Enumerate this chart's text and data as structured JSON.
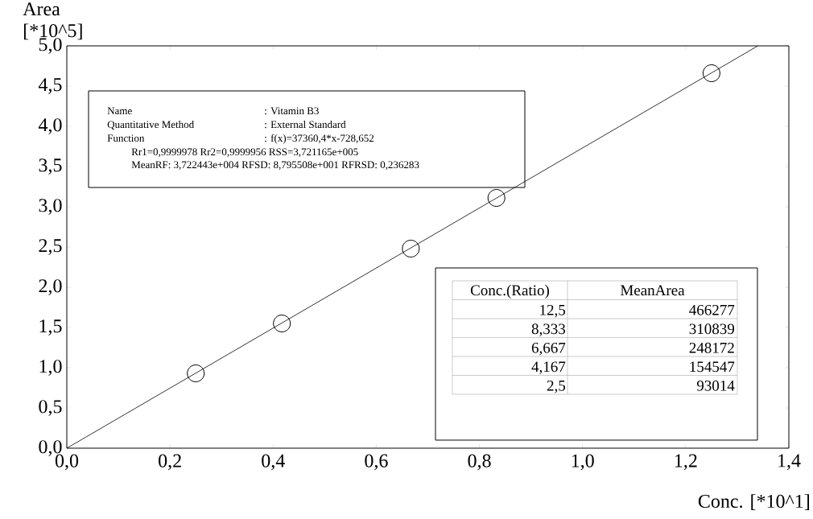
{
  "chart_data": {
    "type": "scatter",
    "xlabel": "Conc. [*10^1]",
    "ylabel": "Area [*10^5]",
    "xlim": [
      0,
      1.4
    ],
    "ylim": [
      0,
      5.0
    ],
    "xticks": [
      {
        "value": 0,
        "label": "0,0"
      },
      {
        "value": 0.2,
        "label": "0,2"
      },
      {
        "value": 0.4,
        "label": "0,4"
      },
      {
        "value": 0.6,
        "label": "0,6"
      },
      {
        "value": 0.8,
        "label": "0,8"
      },
      {
        "value": 1.0,
        "label": "1,0"
      },
      {
        "value": 1.2,
        "label": "1,2"
      },
      {
        "value": 1.4,
        "label": "1,4"
      }
    ],
    "yticks": [
      {
        "value": 0,
        "label": "0,0"
      },
      {
        "value": 0.5,
        "label": "0,5"
      },
      {
        "value": 1.0,
        "label": "1,0"
      },
      {
        "value": 1.5,
        "label": "1,5"
      },
      {
        "value": 2.0,
        "label": "2,0"
      },
      {
        "value": 2.5,
        "label": "2,5"
      },
      {
        "value": 3.0,
        "label": "3,0"
      },
      {
        "value": 3.5,
        "label": "3,5"
      },
      {
        "value": 4.0,
        "label": "4,0"
      },
      {
        "value": 4.5,
        "label": "4,5"
      },
      {
        "value": 5.0,
        "label": "5,0"
      }
    ],
    "grid": false,
    "series": [
      {
        "color": "#000000",
        "marker": "circle",
        "x": [
          1.25,
          0.833,
          0.667,
          0.417,
          0.25
        ],
        "values": [
          4.66,
          3.11,
          2.48,
          1.55,
          0.93
        ]
      },
      {
        "type": "line",
        "color": "#000000",
        "marker": "none",
        "line_style": "solid",
        "x": [
          0,
          1.34
        ],
        "values": [
          0,
          5.0
        ]
      }
    ],
    "annotations": [
      "Name",
      ": Vitamin B3",
      "Quantitative Method",
      ": External Standard",
      "Function",
      ": f(x)=37360,4*x-728,652",
      "Rr1=0,9999978   Rr2=0,9999956   RSS=3,721165e+005",
      "MeanRF: 3,722443e+004  RFSD: 8,795508e+001   RFRSD: 0,236283",
      "Conc.(Ratio)",
      "MeanArea",
      "12,5",
      "8,333",
      "6,667",
      "4,167",
      "2,5",
      "466277",
      "310839",
      "248172",
      "154547",
      "93014"
    ]
  }
}
